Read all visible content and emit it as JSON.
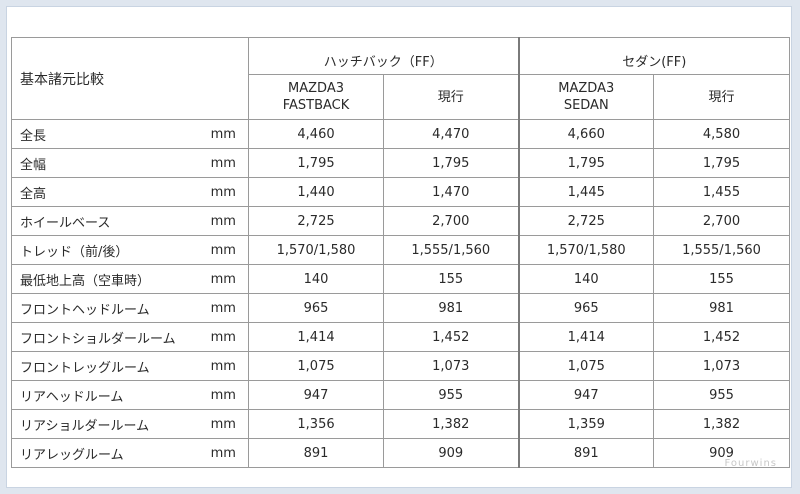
{
  "table": {
    "title": "基本諸元比較",
    "groups": [
      "ハッチバック（FF）",
      "セダン(FF)"
    ],
    "subheaders": [
      [
        "MAZDA3",
        "FASTBACK"
      ],
      [
        "現行"
      ],
      [
        "MAZDA3",
        "SEDAN"
      ],
      [
        "現行"
      ]
    ],
    "rows": [
      {
        "item": "全長",
        "unit": "mm",
        "values": [
          "4,460",
          "4,470",
          "4,660",
          "4,580"
        ]
      },
      {
        "item": "全幅",
        "unit": "mm",
        "values": [
          "1,795",
          "1,795",
          "1,795",
          "1,795"
        ]
      },
      {
        "item": "全高",
        "unit": "mm",
        "values": [
          "1,440",
          "1,470",
          "1,445",
          "1,455"
        ]
      },
      {
        "item": "ホイールベース",
        "unit": "mm",
        "values": [
          "2,725",
          "2,700",
          "2,725",
          "2,700"
        ]
      },
      {
        "item": "トレッド（前/後）",
        "unit": "mm",
        "values": [
          "1,570/1,580",
          "1,555/1,560",
          "1,570/1,580",
          "1,555/1,560"
        ]
      },
      {
        "item": "最低地上高（空車時）",
        "unit": "mm",
        "values": [
          "140",
          "155",
          "140",
          "155"
        ]
      },
      {
        "item": "フロントヘッドルーム",
        "unit": "mm",
        "values": [
          "965",
          "981",
          "965",
          "981"
        ]
      },
      {
        "item": "フロントショルダールーム",
        "unit": "mm",
        "values": [
          "1,414",
          "1,452",
          "1,414",
          "1,452"
        ]
      },
      {
        "item": "フロントレッグルーム",
        "unit": "mm",
        "values": [
          "1,075",
          "1,073",
          "1,075",
          "1,073"
        ]
      },
      {
        "item": "リアヘッドルーム",
        "unit": "mm",
        "values": [
          "947",
          "955",
          "947",
          "955"
        ]
      },
      {
        "item": "リアショルダールーム",
        "unit": "mm",
        "values": [
          "1,356",
          "1,382",
          "1,359",
          "1,382"
        ]
      },
      {
        "item": "リアレッグルーム",
        "unit": "mm",
        "values": [
          "891",
          "909",
          "891",
          "909"
        ]
      }
    ]
  },
  "watermark": "Fourwins"
}
